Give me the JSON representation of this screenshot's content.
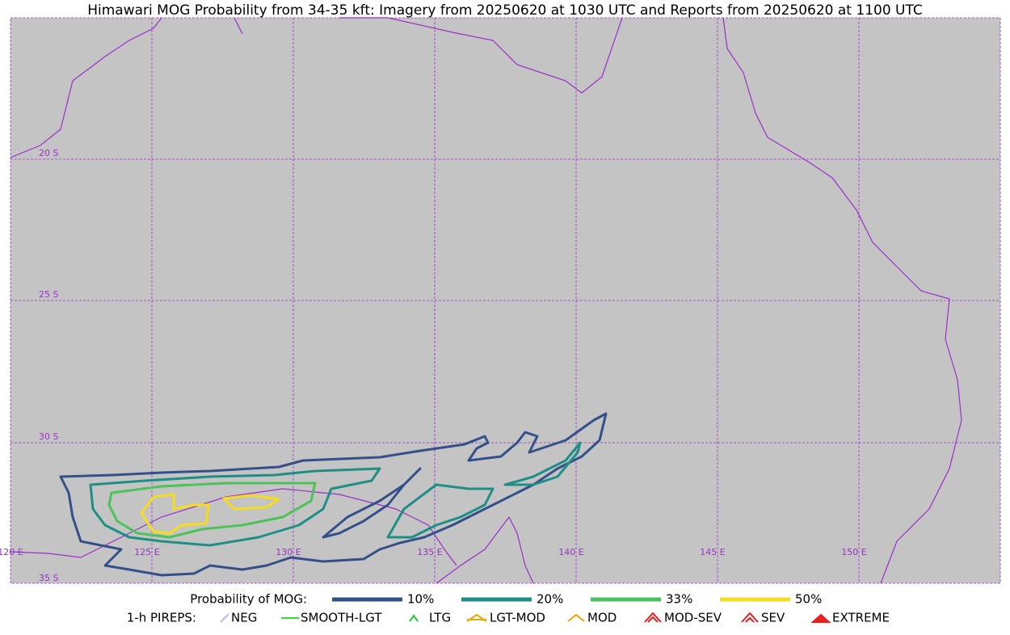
{
  "title": "Himawari MOG Probability from 34-35 kft: Imagery from 20250620 at 1030 UTC and Reports from 20250620 at 1100 UTC",
  "map": {
    "lat_labels": [
      "20 S",
      "25 S",
      "30 S",
      "35 S"
    ],
    "lon_labels": [
      "120 E",
      "125 E",
      "130 E",
      "135 E",
      "140 E",
      "145 E",
      "150 E"
    ]
  },
  "legend": {
    "probability": {
      "title": "Probability of MOG:",
      "items": [
        {
          "label": "10%",
          "color": "#34508a"
        },
        {
          "label": "20%",
          "color": "#1f8f86"
        },
        {
          "label": "33%",
          "color": "#4cc35a"
        },
        {
          "label": "50%",
          "color": "#f5dd1e"
        }
      ]
    },
    "pireps": {
      "title": "1-h PIREPS:",
      "items": [
        {
          "label": "NEG",
          "color": "#b8b8f0"
        },
        {
          "label": "SMOOTH-LGT",
          "color": "#33dd33"
        },
        {
          "label": "LTG",
          "color": "#22cc22"
        },
        {
          "label": "LGT-MOD",
          "color": "#f2a400"
        },
        {
          "label": "MOD",
          "color": "#f2a400"
        },
        {
          "label": "MOD-SEV",
          "color": "#e82020"
        },
        {
          "label": "SEV",
          "color": "#e82020"
        },
        {
          "label": "EXTREME",
          "color": "#e82020"
        }
      ]
    }
  }
}
